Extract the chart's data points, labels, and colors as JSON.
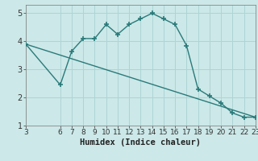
{
  "xlabel": "Humidex (Indice chaleur)",
  "ylabel": "",
  "bg_color": "#cce8e8",
  "line_color": "#2a7a7a",
  "grid_color": "#aed4d4",
  "curve1_x": [
    3,
    6,
    7,
    8,
    9,
    10,
    11,
    12,
    13,
    14,
    15,
    16,
    17,
    18,
    19,
    20,
    21,
    22,
    23
  ],
  "curve1_y": [
    3.9,
    2.45,
    3.65,
    4.1,
    4.1,
    4.6,
    4.25,
    4.6,
    4.8,
    5.0,
    4.8,
    4.6,
    3.85,
    2.3,
    2.05,
    1.8,
    1.45,
    1.3,
    1.3
  ],
  "curve2_x": [
    3,
    23
  ],
  "curve2_y": [
    3.9,
    1.3
  ],
  "xlim": [
    3,
    23
  ],
  "ylim": [
    1,
    5.3
  ],
  "xticks": [
    3,
    6,
    7,
    8,
    9,
    10,
    11,
    12,
    13,
    14,
    15,
    16,
    17,
    18,
    19,
    20,
    21,
    22,
    23
  ],
  "yticks": [
    1,
    2,
    3,
    4,
    5
  ],
  "marker": "+",
  "markersize": 5,
  "linewidth": 1.0,
  "tick_fontsize": 6.5,
  "xlabel_fontsize": 7.5
}
